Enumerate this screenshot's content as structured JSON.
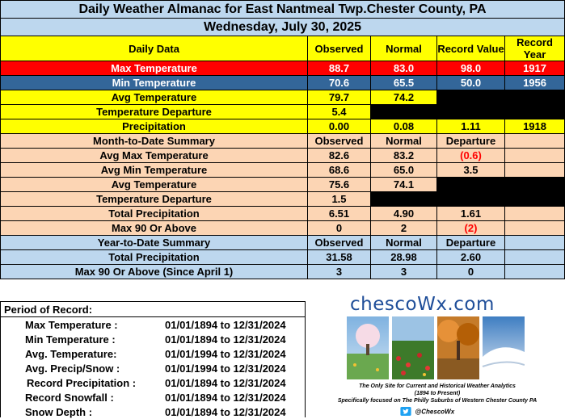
{
  "title": "Daily Weather Almanac for East Nantmeal Twp.Chester County, PA",
  "date": "Wednesday, July 30, 2025",
  "headers": {
    "daily_data": "Daily Data",
    "observed": "Observed",
    "normal": "Normal",
    "record_value": "Record Value",
    "record_year": "Record Year"
  },
  "daily": {
    "max": {
      "label": "Max Temperature",
      "observed": "88.7",
      "normal": "83.0",
      "record": "98.0",
      "year": "1917"
    },
    "min": {
      "label": "Min Temperature",
      "observed": "70.6",
      "normal": "65.5",
      "record": "50.0",
      "year": "1956"
    },
    "avg": {
      "label": "Avg Temperature",
      "observed": "79.7",
      "normal": "74.2"
    },
    "dep": {
      "label": "Temperature Departure",
      "observed": "5.4"
    },
    "precip": {
      "label": "Precipitation",
      "observed": "0.00",
      "normal": "0.08",
      "record": "1.11",
      "year": "1918"
    }
  },
  "mtd": {
    "header": "Month-to-Date Summary",
    "observed": "Observed",
    "normal": "Normal",
    "departure": "Departure",
    "avg_max": {
      "label": "Avg Max Temperature",
      "observed": "82.6",
      "normal": "83.2",
      "departure": "(0.6)"
    },
    "avg_min": {
      "label": "Avg Min Temperature",
      "observed": "68.6",
      "normal": "65.0",
      "departure": "3.5"
    },
    "avg": {
      "label": "Avg Temperature",
      "observed": "75.6",
      "normal": "74.1"
    },
    "dep": {
      "label": "Temperature Departure",
      "observed": "1.5"
    },
    "precip": {
      "label": "Total Precipitation",
      "observed": "6.51",
      "normal": "4.90",
      "departure": "1.61"
    },
    "max90": {
      "label": "Max 90 Or Above",
      "observed": "0",
      "normal": "2",
      "departure": "(2)"
    }
  },
  "ytd": {
    "header": "Year-to-Date Summary",
    "observed": "Observed",
    "normal": "Normal",
    "departure": "Departure",
    "precip": {
      "label": "Total Precipitation",
      "observed": "31.58",
      "normal": "28.98",
      "departure": "2.60"
    },
    "max90": {
      "label": "Max 90 Or Above (Since April 1)",
      "observed": "3",
      "normal": "3",
      "departure": "0"
    }
  },
  "period_of_record": {
    "title": "Period of Record:",
    "rows": [
      {
        "label": "Max Temperature :",
        "range": "01/01/1894 to 12/31/2024"
      },
      {
        "label": "Min Temperature :",
        "range": "01/01/1894 to 12/31/2024"
      },
      {
        "label": "Avg. Temperature:",
        "range": "01/01/1994 to 12/31/2024"
      },
      {
        "label": "Avg. Precip/Snow :",
        "range": "01/01/1994 to 12/31/2024"
      },
      {
        "label": "Record Precipitation :",
        "range": "01/01/1894 to 12/31/2024"
      },
      {
        "label": "Record Snowfall :",
        "range": "01/01/1894 to 12/31/2024"
      },
      {
        "label": "Snow Depth :",
        "range": "01/01/1894 to 12/31/2024"
      }
    ]
  },
  "logo": {
    "name": "chescoWx.com",
    "tagline": "The Only Site for Current and Historical Weather Analytics",
    "years": "(1894 to Present)",
    "focus": "Specifically focused on The Philly Suburbs of Western Chester County PA",
    "twitter": "@ChescoWx"
  },
  "colors": {
    "header_blue": "#bdd7ee",
    "yellow": "#ffff00",
    "max_red": "#ff0000",
    "min_blue": "#336699",
    "peach": "#fcd5b4",
    "logo_blue": "#1f4e99"
  }
}
